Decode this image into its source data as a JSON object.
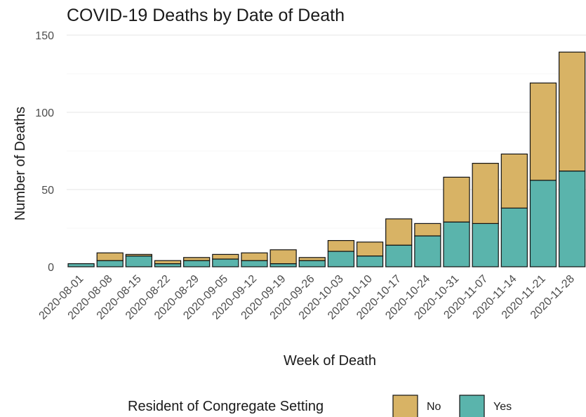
{
  "chart_data": {
    "type": "bar",
    "stacked": true,
    "title": "COVID-19 Deaths by Date of Death",
    "xlabel": "Week of Death",
    "ylabel": "Number of Deaths",
    "ylim": [
      0,
      150
    ],
    "yticks": [
      0,
      50,
      100,
      150
    ],
    "grid": true,
    "legend_position": "bottom",
    "legend_title": "Resident of Congregate Setting",
    "categories": [
      "2020-08-01",
      "2020-08-08",
      "2020-08-15",
      "2020-08-22",
      "2020-08-29",
      "2020-09-05",
      "2020-09-12",
      "2020-09-19",
      "2020-09-26",
      "2020-10-03",
      "2020-10-10",
      "2020-10-17",
      "2020-10-24",
      "2020-10-31",
      "2020-11-07",
      "2020-11-14",
      "2020-11-21",
      "2020-11-28"
    ],
    "series": [
      {
        "name": "Yes",
        "color": "#5ab4ac",
        "values": [
          2,
          4,
          7,
          2,
          4,
          5,
          4,
          2,
          4,
          10,
          7,
          14,
          20,
          29,
          28,
          38,
          56,
          62
        ]
      },
      {
        "name": "No",
        "color": "#d8b365",
        "values": [
          0,
          5,
          1,
          2,
          2,
          3,
          5,
          9,
          2,
          7,
          9,
          17,
          8,
          29,
          39,
          35,
          63,
          77
        ]
      }
    ]
  }
}
